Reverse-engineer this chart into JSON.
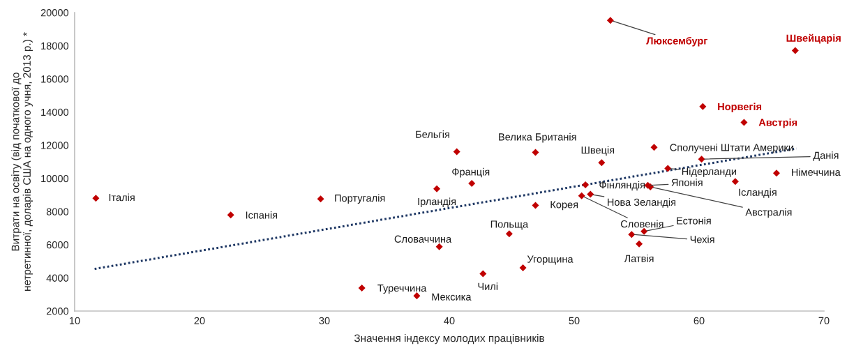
{
  "chart_data": {
    "type": "scatter",
    "xlabel": "Значення індексу молодих працівників",
    "ylabel": "Витрати на освіту (від початкової до\nнетретинної, доларів США на одного учня, 2013 р.) *",
    "xlim": [
      10,
      70
    ],
    "ylim": [
      2000,
      20000
    ],
    "xticks": [
      10,
      20,
      30,
      40,
      50,
      60,
      70
    ],
    "yticks": [
      2000,
      4000,
      6000,
      8000,
      10000,
      12000,
      14000,
      16000,
      18000,
      20000
    ],
    "marker": "diamond",
    "grid": false,
    "series": [
      {
        "color": "#c00000",
        "x": [
          11.7,
          22.5,
          29.7,
          33.0,
          37.4,
          39.0,
          39.2,
          40.6,
          41.8,
          42.7,
          44.8,
          45.9,
          46.9,
          46.9,
          52.2,
          50.9,
          51.3,
          50.6,
          55.9,
          56.1,
          55.6,
          54.6,
          55.2,
          56.4,
          60.2,
          57.5,
          66.2,
          62.9
        ],
        "values": [
          8800,
          7790,
          8760,
          3390,
          2920,
          9370,
          5880,
          11610,
          9700,
          4250,
          6660,
          4610,
          11570,
          8370,
          10950,
          9610,
          9040,
          8950,
          9580,
          9490,
          6810,
          6620,
          6050,
          11870,
          11160,
          10600,
          10320,
          9810
        ]
      },
      {
        "color": "#c00000",
        "x": [
          52.9,
          67.7,
          60.3,
          63.6
        ],
        "values": [
          19530,
          17710,
          14330,
          13380
        ]
      },
      {
        "type": "line",
        "color": "#1f3864",
        "line_style": "dotted",
        "marker": "none",
        "x": [
          11.6,
          67.8
        ],
        "values": [
          4540,
          11800
        ]
      }
    ],
    "annotations": [
      {
        "text": "Італія",
        "x": 11.7,
        "y": 8800
      },
      {
        "text": "Іспанія",
        "x": 22.5,
        "y": 7790
      },
      {
        "text": "Португалія",
        "x": 29.7,
        "y": 8760
      },
      {
        "text": "Туреччина",
        "x": 33.0,
        "y": 3390
      },
      {
        "text": "Мексика",
        "x": 37.4,
        "y": 2920
      },
      {
        "text": "Ірландія",
        "x": 39.0,
        "y": 9370
      },
      {
        "text": "Словаччина",
        "x": 39.2,
        "y": 5880
      },
      {
        "text": "Бельгія",
        "x": 40.6,
        "y": 11610
      },
      {
        "text": "Франція",
        "x": 41.8,
        "y": 9700
      },
      {
        "text": "Чилі",
        "x": 42.7,
        "y": 4250
      },
      {
        "text": "Польща",
        "x": 44.8,
        "y": 6660
      },
      {
        "text": "Угорщина",
        "x": 45.9,
        "y": 4610
      },
      {
        "text": "Велика Британія",
        "x": 46.9,
        "y": 11570
      },
      {
        "text": "Корея",
        "x": 46.9,
        "y": 8370
      },
      {
        "text": "Швеція",
        "x": 52.2,
        "y": 10950
      },
      {
        "text": "Фінляндія",
        "x": 50.9,
        "y": 9610
      },
      {
        "text": "Нова Зеландія",
        "x": 51.3,
        "y": 9040
      },
      {
        "text": "Словенія",
        "x": 50.6,
        "y": 8950
      },
      {
        "text": "Японія",
        "x": 55.9,
        "y": 9580
      },
      {
        "text": "Австралія",
        "x": 56.1,
        "y": 9490
      },
      {
        "text": "Естонія",
        "x": 55.6,
        "y": 6810
      },
      {
        "text": "Чехія",
        "x": 54.6,
        "y": 6620
      },
      {
        "text": "Латвія",
        "x": 55.2,
        "y": 6050
      },
      {
        "text": "Сполучені Штати Америки",
        "x": 56.4,
        "y": 11870
      },
      {
        "text": "Данія",
        "x": 60.2,
        "y": 11160
      },
      {
        "text": "Нідерланди",
        "x": 57.5,
        "y": 10600
      },
      {
        "text": "Німеччина",
        "x": 66.2,
        "y": 10320
      },
      {
        "text": "Ісландія",
        "x": 62.9,
        "y": 9810
      },
      {
        "text": "Люксембург",
        "x": 52.9,
        "y": 19530
      },
      {
        "text": "Швейцарія",
        "x": 67.7,
        "y": 17710
      },
      {
        "text": "Норвегія",
        "x": 60.3,
        "y": 14330
      },
      {
        "text": "Австрія",
        "x": 63.6,
        "y": 13380
      }
    ]
  }
}
